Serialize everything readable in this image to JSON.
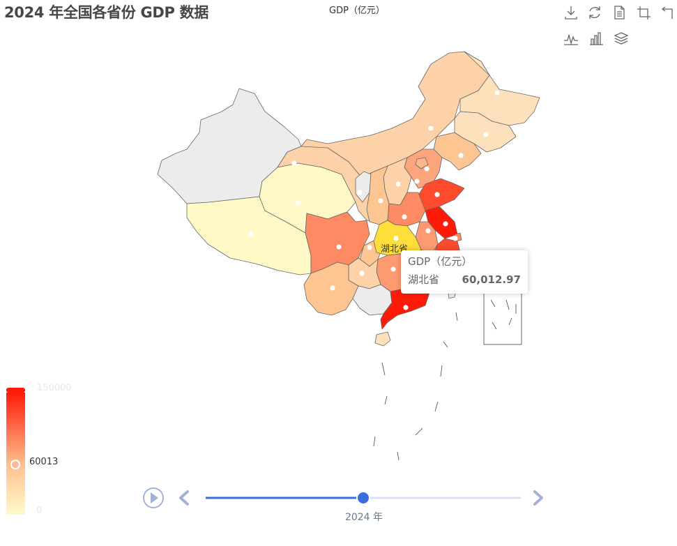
{
  "page": {
    "title": "2024 年全国各省份 GDP 数据"
  },
  "chart_data": {
    "type": "map",
    "map": "china",
    "series_name": "GDP（亿元）",
    "year": "2024 年",
    "visual_map": {
      "min": 0,
      "max": 150000,
      "current": 60013,
      "max_label": "150000",
      "min_label": "0",
      "current_label": "60013"
    },
    "highlighted_region": {
      "name": "湖北省",
      "value": 60012.97,
      "value_label": "60,012.97"
    },
    "timeline": {
      "current_label": "2024 年",
      "progress": 0.5
    },
    "colors": {
      "low": "#fff9c8",
      "mid": "#fdc08e",
      "high": "#ff1b0a",
      "no_data": "#ececec",
      "highlight": "#fede3a",
      "timeline": "#3b6de0"
    }
  },
  "toolbox": {
    "icons": [
      "download-icon",
      "refresh-icon",
      "data-view-icon",
      "zoom-select-icon",
      "zoom-reset-icon",
      "line-chart-icon",
      "bar-chart-icon",
      "stack-icon"
    ]
  }
}
